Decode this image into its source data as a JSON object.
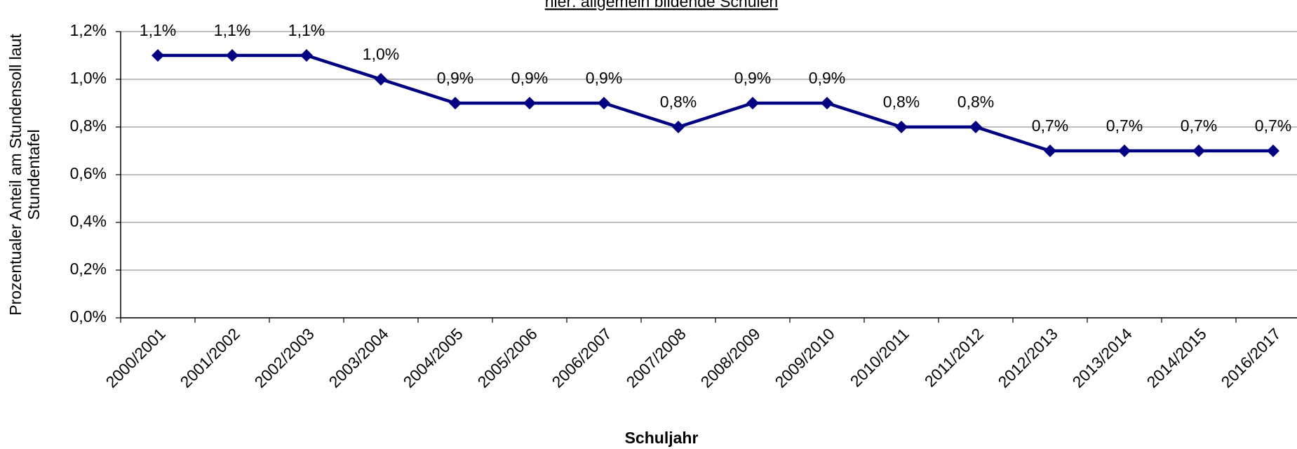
{
  "chart_data": {
    "type": "line",
    "subtitle": "hier: allgemein bildende Schulen",
    "xlabel": "Schuljahr",
    "ylabel": [
      "Prozentualer Anteil am Stundensoll laut",
      "Stundentafel"
    ],
    "categories": [
      "2000/2001",
      "2001/2002",
      "2002/2003",
      "2003/2004",
      "2004/2005",
      "2005/2006",
      "2006/2007",
      "2007/2008",
      "2008/2009",
      "2009/2010",
      "2010/2011",
      "2011/2012",
      "2012/2013",
      "2013/2014",
      "2014/2015",
      "2016/2017"
    ],
    "values": [
      1.1,
      1.1,
      1.1,
      1.0,
      0.9,
      0.9,
      0.9,
      0.8,
      0.9,
      0.9,
      0.8,
      0.8,
      0.7,
      0.7,
      0.7,
      0.7
    ],
    "value_labels": [
      "1,1%",
      "1,1%",
      "1,1%",
      "1,0%",
      "0,9%",
      "0,9%",
      "0,9%",
      "0,8%",
      "0,9%",
      "0,9%",
      "0,8%",
      "0,8%",
      "0,7%",
      "0,7%",
      "0,7%",
      "0,7%"
    ],
    "color": "#000080",
    "ylim": [
      0,
      1.2
    ],
    "yticks": [
      {
        "value": 0,
        "label": "0,0%"
      },
      {
        "value": 0.2,
        "label": "0,2%"
      },
      {
        "value": 0.4,
        "label": "0,4%"
      },
      {
        "value": 0.6,
        "label": "0,6%"
      },
      {
        "value": 0.8,
        "label": "0,8%"
      },
      {
        "value": 1.0,
        "label": "1,0%"
      },
      {
        "value": 1.2,
        "label": "1,2%"
      }
    ],
    "grid": true
  }
}
